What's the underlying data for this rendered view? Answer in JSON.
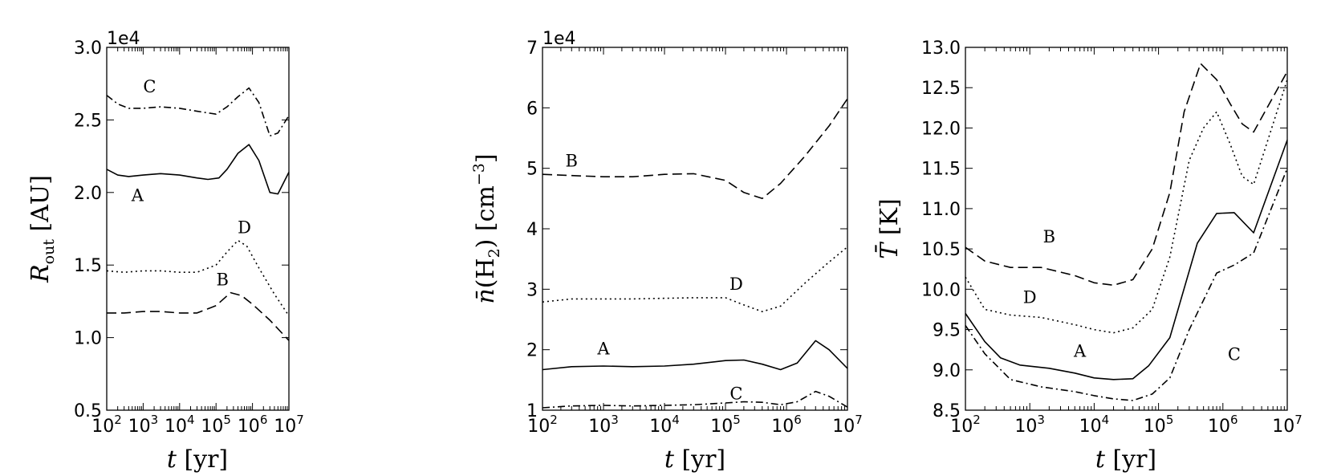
{
  "chart_data": [
    {
      "type": "line",
      "xlabel": "t [yr]",
      "ylabel": "R_out [AU]",
      "offset_label": "1e4",
      "xscale": "log",
      "xlim": [
        100,
        10000000
      ],
      "ylim": [
        0.5,
        3.0
      ],
      "x_ticks": [
        "10^2",
        "10^3",
        "10^4",
        "10^5",
        "10^6",
        "10^7"
      ],
      "y_ticks": [
        "0.5",
        "1.0",
        "1.5",
        "2.0",
        "2.5",
        "3.0"
      ],
      "grid": false,
      "series": [
        {
          "name": "A",
          "style": "solid",
          "x": [
            100,
            200,
            400,
            1000,
            3000,
            10000,
            30000,
            60000,
            120000,
            200000,
            400000,
            800000,
            1500000,
            3000000,
            5000000,
            10000000
          ],
          "y": [
            2.16,
            2.12,
            2.11,
            2.12,
            2.13,
            2.12,
            2.1,
            2.09,
            2.1,
            2.16,
            2.27,
            2.33,
            2.22,
            2.0,
            1.99,
            2.14
          ]
        },
        {
          "name": "B",
          "style": "dashed",
          "x": [
            100,
            300,
            1000,
            3000,
            10000,
            30000,
            100000,
            250000,
            500000,
            1000000,
            3000000,
            10000000
          ],
          "y": [
            1.17,
            1.17,
            1.18,
            1.18,
            1.17,
            1.17,
            1.22,
            1.31,
            1.29,
            1.23,
            1.12,
            0.98
          ]
        },
        {
          "name": "C",
          "style": "dashdot",
          "x": [
            100,
            200,
            400,
            1000,
            3000,
            10000,
            30000,
            100000,
            200000,
            400000,
            800000,
            1500000,
            3000000,
            5000000,
            10000000
          ],
          "y": [
            2.67,
            2.61,
            2.58,
            2.58,
            2.59,
            2.58,
            2.56,
            2.54,
            2.59,
            2.66,
            2.72,
            2.62,
            2.39,
            2.41,
            2.53
          ]
        },
        {
          "name": "D",
          "style": "dotted",
          "x": [
            100,
            300,
            1000,
            3000,
            10000,
            30000,
            100000,
            200000,
            400000,
            700000,
            1500000,
            4000000,
            10000000
          ],
          "y": [
            1.46,
            1.45,
            1.46,
            1.46,
            1.45,
            1.45,
            1.5,
            1.59,
            1.67,
            1.63,
            1.48,
            1.3,
            1.15
          ]
        }
      ],
      "annotations": [
        {
          "text": "C",
          "x": 1500,
          "y": 2.69
        },
        {
          "text": "A",
          "x": 700,
          "y": 1.94
        },
        {
          "text": "D",
          "x": 600000,
          "y": 1.72
        },
        {
          "text": "B",
          "x": 150000,
          "y": 1.36
        }
      ]
    },
    {
      "type": "line",
      "xlabel": "t [yr]",
      "ylabel": "n̄(H2) [cm^-3]",
      "offset_label": "1e4",
      "xscale": "log",
      "xlim": [
        100,
        10000000
      ],
      "ylim": [
        1,
        7
      ],
      "x_ticks": [
        "10^2",
        "10^3",
        "10^4",
        "10^5",
        "10^6",
        "10^7"
      ],
      "y_ticks": [
        "1",
        "2",
        "3",
        "4",
        "5",
        "6",
        "7"
      ],
      "grid": false,
      "series": [
        {
          "name": "A",
          "style": "solid",
          "x": [
            100,
            300,
            1000,
            3000,
            10000,
            30000,
            100000,
            200000,
            400000,
            800000,
            1500000,
            3000000,
            5000000,
            10000000
          ],
          "y": [
            1.67,
            1.72,
            1.73,
            1.72,
            1.73,
            1.76,
            1.82,
            1.83,
            1.76,
            1.67,
            1.78,
            2.15,
            2.0,
            1.69
          ]
        },
        {
          "name": "B",
          "style": "dashed",
          "x": [
            100,
            300,
            1000,
            3000,
            10000,
            30000,
            100000,
            200000,
            400000,
            800000,
            2000000,
            5000000,
            10000000
          ],
          "y": [
            4.9,
            4.88,
            4.86,
            4.86,
            4.9,
            4.91,
            4.8,
            4.6,
            4.5,
            4.75,
            5.2,
            5.7,
            6.15
          ]
        },
        {
          "name": "C",
          "style": "dashdot",
          "x": [
            100,
            300,
            1000,
            3000,
            10000,
            30000,
            100000,
            200000,
            400000,
            800000,
            1500000,
            3000000,
            5000000,
            10000000
          ],
          "y": [
            1.04,
            1.07,
            1.08,
            1.07,
            1.08,
            1.09,
            1.12,
            1.14,
            1.13,
            1.09,
            1.14,
            1.31,
            1.23,
            1.05
          ]
        },
        {
          "name": "D",
          "style": "dotted",
          "x": [
            100,
            300,
            1000,
            3000,
            10000,
            30000,
            100000,
            200000,
            400000,
            800000,
            2000000,
            5000000,
            10000000
          ],
          "y": [
            2.79,
            2.84,
            2.84,
            2.84,
            2.85,
            2.86,
            2.86,
            2.74,
            2.63,
            2.72,
            3.1,
            3.45,
            3.7
          ]
        }
      ],
      "annotations": [
        {
          "text": "B",
          "x": 300,
          "y": 5.03
        },
        {
          "text": "D",
          "x": 150000,
          "y": 2.99
        },
        {
          "text": "A",
          "x": 1000,
          "y": 1.92
        },
        {
          "text": "C",
          "x": 150000,
          "y": 1.18
        }
      ]
    },
    {
      "type": "line",
      "xlabel": "t [yr]",
      "ylabel": "T̄ [K]",
      "xscale": "log",
      "xlim": [
        100,
        10000000
      ],
      "ylim": [
        8.5,
        13.0
      ],
      "x_ticks": [
        "10^2",
        "10^3",
        "10^4",
        "10^5",
        "10^6",
        "10^7"
      ],
      "y_ticks": [
        "8.5",
        "9.0",
        "9.5",
        "10.0",
        "10.5",
        "11.0",
        "11.5",
        "12.0",
        "12.5",
        "13.0"
      ],
      "grid": false,
      "series": [
        {
          "name": "A",
          "style": "solid",
          "x": [
            100,
            200,
            350,
            700,
            2000,
            5000,
            10000,
            20000,
            40000,
            70000,
            150000,
            400000,
            800000,
            1500000,
            3000000,
            10000000
          ],
          "y": [
            9.7,
            9.35,
            9.15,
            9.06,
            9.02,
            8.96,
            8.9,
            8.88,
            8.89,
            9.05,
            9.4,
            10.57,
            10.94,
            10.95,
            10.7,
            11.85
          ]
        },
        {
          "name": "B",
          "style": "dashed",
          "x": [
            100,
            200,
            500,
            1500,
            5000,
            10000,
            20000,
            40000,
            80000,
            150000,
            250000,
            450000,
            800000,
            1300000,
            2000000,
            3000000,
            10000000
          ],
          "y": [
            10.52,
            10.35,
            10.27,
            10.27,
            10.17,
            10.08,
            10.05,
            10.12,
            10.5,
            11.2,
            12.2,
            12.8,
            12.6,
            12.3,
            12.05,
            11.95,
            12.7
          ]
        },
        {
          "name": "C",
          "style": "dashdot",
          "x": [
            100,
            200,
            500,
            1500,
            5000,
            10000,
            20000,
            40000,
            80000,
            150000,
            300000,
            800000,
            1500000,
            3000000,
            10000000
          ],
          "y": [
            9.55,
            9.2,
            8.88,
            8.79,
            8.73,
            8.68,
            8.64,
            8.62,
            8.7,
            8.9,
            9.5,
            10.2,
            10.3,
            10.45,
            11.5
          ]
        },
        {
          "name": "D",
          "style": "dotted",
          "x": [
            100,
            200,
            500,
            1500,
            5000,
            10000,
            20000,
            40000,
            80000,
            150000,
            300000,
            500000,
            800000,
            1300000,
            2000000,
            3000000,
            10000000
          ],
          "y": [
            10.15,
            9.75,
            9.68,
            9.65,
            9.56,
            9.5,
            9.46,
            9.52,
            9.75,
            10.4,
            11.6,
            12.0,
            12.2,
            11.8,
            11.4,
            11.3,
            12.6
          ]
        }
      ],
      "annotations": [
        {
          "text": "B",
          "x": 2000,
          "y": 10.58
        },
        {
          "text": "D",
          "x": 1000,
          "y": 9.83
        },
        {
          "text": "A",
          "x": 6000,
          "y": 9.16
        },
        {
          "text": "C",
          "x": 1500000,
          "y": 9.12
        }
      ]
    }
  ]
}
